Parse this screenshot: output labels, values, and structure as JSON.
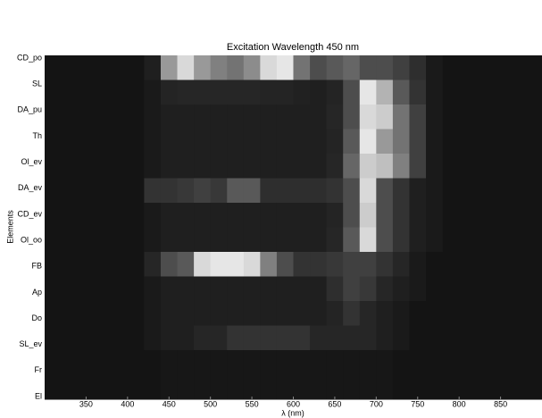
{
  "chart_data": {
    "type": "heatmap",
    "title": "Excitation Wavelength 450 nm",
    "x_label": "λ (nm)",
    "y_label": "Elements",
    "colormap": "gray",
    "categories": [
      "CD_po",
      "SL",
      "DA_pu",
      "Th",
      "Ol_ev",
      "DA_ev",
      "CD_ev",
      "Ol_oo",
      "FB",
      "Ap",
      "Do",
      "SL_ev",
      "Fr",
      "El"
    ],
    "bins": [
      300,
      320,
      340,
      360,
      380,
      400,
      420,
      440,
      460,
      480,
      500,
      520,
      540,
      560,
      580,
      600,
      620,
      640,
      660,
      680,
      700,
      720,
      740,
      760,
      780,
      800,
      820,
      840,
      860,
      880,
      900
    ],
    "xlim": [
      300,
      900
    ],
    "xticks": [
      350,
      400,
      450,
      500,
      550,
      600,
      650,
      700,
      750,
      800,
      850
    ],
    "values": [
      [
        0.08,
        0.08,
        0.08,
        0.08,
        0.08,
        0.08,
        0.12,
        0.6,
        0.85,
        0.6,
        0.5,
        0.45,
        0.55,
        0.85,
        0.9,
        0.45,
        0.3,
        0.35,
        0.4,
        0.3,
        0.3,
        0.25,
        0.18,
        0.1,
        0.08,
        0.08,
        0.08,
        0.08,
        0.08,
        0.08
      ],
      [
        0.08,
        0.08,
        0.08,
        0.08,
        0.08,
        0.08,
        0.1,
        0.14,
        0.15,
        0.15,
        0.15,
        0.15,
        0.15,
        0.14,
        0.14,
        0.13,
        0.12,
        0.14,
        0.3,
        0.9,
        0.7,
        0.35,
        0.2,
        0.1,
        0.08,
        0.08,
        0.08,
        0.08,
        0.08,
        0.08
      ],
      [
        0.08,
        0.08,
        0.08,
        0.08,
        0.08,
        0.08,
        0.1,
        0.12,
        0.12,
        0.12,
        0.12,
        0.12,
        0.12,
        0.12,
        0.12,
        0.12,
        0.12,
        0.15,
        0.3,
        0.85,
        0.8,
        0.45,
        0.25,
        0.1,
        0.08,
        0.08,
        0.08,
        0.08,
        0.08,
        0.08
      ],
      [
        0.08,
        0.08,
        0.08,
        0.08,
        0.08,
        0.08,
        0.1,
        0.12,
        0.12,
        0.12,
        0.12,
        0.12,
        0.12,
        0.12,
        0.12,
        0.12,
        0.12,
        0.14,
        0.35,
        0.9,
        0.6,
        0.45,
        0.25,
        0.1,
        0.08,
        0.08,
        0.08,
        0.08,
        0.08,
        0.08
      ],
      [
        0.08,
        0.08,
        0.08,
        0.08,
        0.08,
        0.08,
        0.1,
        0.12,
        0.12,
        0.12,
        0.12,
        0.12,
        0.12,
        0.12,
        0.12,
        0.12,
        0.12,
        0.15,
        0.4,
        0.8,
        0.75,
        0.5,
        0.25,
        0.1,
        0.08,
        0.08,
        0.08,
        0.08,
        0.08,
        0.08
      ],
      [
        0.08,
        0.08,
        0.08,
        0.08,
        0.08,
        0.08,
        0.2,
        0.2,
        0.22,
        0.25,
        0.22,
        0.35,
        0.35,
        0.18,
        0.18,
        0.18,
        0.18,
        0.2,
        0.3,
        0.85,
        0.3,
        0.2,
        0.12,
        0.1,
        0.08,
        0.08,
        0.08,
        0.08,
        0.08,
        0.08
      ],
      [
        0.08,
        0.08,
        0.08,
        0.08,
        0.08,
        0.08,
        0.1,
        0.12,
        0.12,
        0.12,
        0.12,
        0.12,
        0.12,
        0.12,
        0.12,
        0.12,
        0.12,
        0.14,
        0.3,
        0.8,
        0.3,
        0.2,
        0.12,
        0.1,
        0.08,
        0.08,
        0.08,
        0.08,
        0.08,
        0.08
      ],
      [
        0.08,
        0.08,
        0.08,
        0.08,
        0.08,
        0.08,
        0.1,
        0.12,
        0.12,
        0.12,
        0.12,
        0.12,
        0.12,
        0.12,
        0.12,
        0.12,
        0.12,
        0.15,
        0.35,
        0.85,
        0.3,
        0.2,
        0.12,
        0.1,
        0.08,
        0.08,
        0.08,
        0.08,
        0.08,
        0.08
      ],
      [
        0.08,
        0.08,
        0.08,
        0.08,
        0.08,
        0.08,
        0.15,
        0.3,
        0.35,
        0.85,
        0.9,
        0.9,
        0.85,
        0.5,
        0.3,
        0.2,
        0.2,
        0.22,
        0.25,
        0.25,
        0.2,
        0.15,
        0.1,
        0.08,
        0.08,
        0.08,
        0.08,
        0.08,
        0.08,
        0.08
      ],
      [
        0.08,
        0.08,
        0.08,
        0.08,
        0.08,
        0.08,
        0.1,
        0.12,
        0.12,
        0.12,
        0.12,
        0.12,
        0.12,
        0.12,
        0.12,
        0.12,
        0.12,
        0.18,
        0.25,
        0.22,
        0.15,
        0.12,
        0.1,
        0.08,
        0.08,
        0.08,
        0.08,
        0.08,
        0.08,
        0.08
      ],
      [
        0.08,
        0.08,
        0.08,
        0.08,
        0.08,
        0.08,
        0.1,
        0.12,
        0.12,
        0.12,
        0.12,
        0.12,
        0.12,
        0.12,
        0.12,
        0.12,
        0.12,
        0.14,
        0.2,
        0.15,
        0.12,
        0.1,
        0.08,
        0.08,
        0.08,
        0.08,
        0.08,
        0.08,
        0.08,
        0.08
      ],
      [
        0.08,
        0.08,
        0.08,
        0.08,
        0.08,
        0.08,
        0.1,
        0.12,
        0.12,
        0.15,
        0.15,
        0.2,
        0.2,
        0.2,
        0.2,
        0.2,
        0.15,
        0.15,
        0.15,
        0.15,
        0.12,
        0.1,
        0.08,
        0.08,
        0.08,
        0.08,
        0.08,
        0.08,
        0.08,
        0.08
      ],
      [
        0.08,
        0.08,
        0.08,
        0.08,
        0.08,
        0.08,
        0.08,
        0.09,
        0.09,
        0.09,
        0.09,
        0.09,
        0.09,
        0.09,
        0.09,
        0.09,
        0.09,
        0.09,
        0.09,
        0.09,
        0.09,
        0.08,
        0.08,
        0.08,
        0.08,
        0.08,
        0.08,
        0.08,
        0.08,
        0.08
      ],
      [
        0.08,
        0.08,
        0.08,
        0.08,
        0.08,
        0.08,
        0.08,
        0.09,
        0.09,
        0.09,
        0.09,
        0.09,
        0.09,
        0.09,
        0.09,
        0.09,
        0.09,
        0.09,
        0.09,
        0.09,
        0.09,
        0.08,
        0.08,
        0.08,
        0.08,
        0.08,
        0.08,
        0.08,
        0.08,
        0.08
      ]
    ]
  }
}
